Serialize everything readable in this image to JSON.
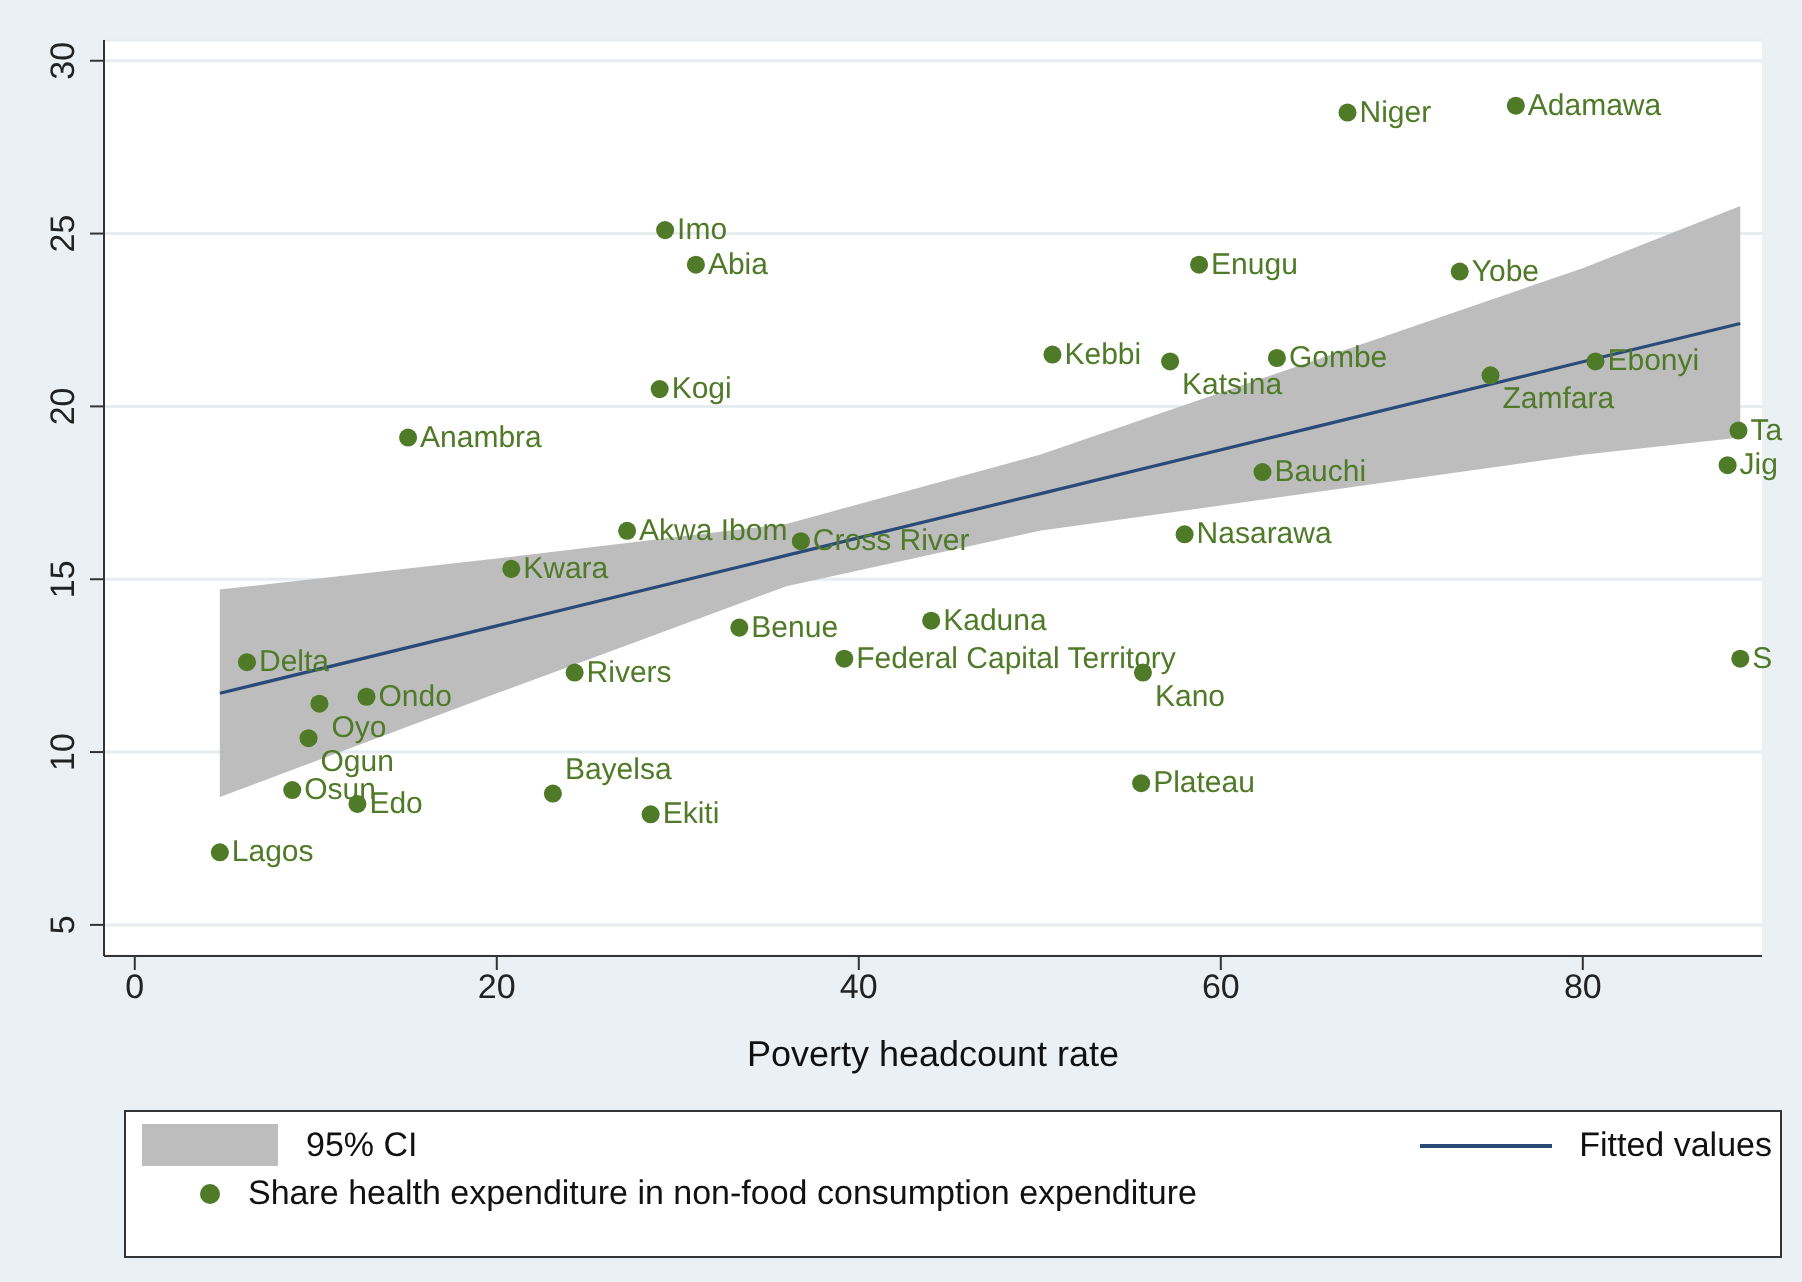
{
  "chart_data": {
    "type": "scatter",
    "xlabel": "Poverty headcount rate",
    "xlim": [
      -1.7,
      89.9
    ],
    "xticks": [
      0,
      20,
      40,
      60,
      80
    ],
    "ylim": [
      4.1,
      30.6
    ],
    "yticks": [
      5,
      10,
      15,
      20,
      25,
      30
    ],
    "grid": "y",
    "legend": "bottom",
    "series": [
      {
        "name": "Fitted values",
        "type": "line",
        "color": "#2a4a78",
        "x": [
          4.7,
          20,
          36,
          50,
          65,
          80,
          88.7
        ],
        "values": [
          11.7,
          13.65,
          15.69,
          17.47,
          19.38,
          21.29,
          22.4
        ],
        "lower": [
          8.7,
          11.7,
          14.8,
          16.4,
          17.5,
          18.6,
          19.1
        ],
        "upper": [
          14.7,
          15.6,
          16.6,
          18.6,
          21.3,
          24.0,
          25.8
        ]
      },
      {
        "name": "Share health expenditure in non-food consumption expenditure",
        "marker": "circle",
        "color": "#4f7a28",
        "x": [
          67.0,
          76.3,
          29.3,
          31.0,
          58.8,
          73.2,
          29.0,
          50.7,
          57.2,
          63.1,
          74.9,
          80.7,
          15.1,
          88.6,
          88.0,
          62.3,
          27.2,
          36.8,
          20.8,
          58.0,
          44.0,
          33.4,
          39.2,
          24.3,
          55.7,
          88.7,
          6.2,
          12.8,
          10.2,
          9.6,
          8.7,
          12.3,
          23.1,
          28.5,
          55.6,
          4.7
        ],
        "values": [
          28.5,
          28.7,
          25.1,
          24.1,
          24.1,
          23.9,
          20.5,
          21.5,
          21.3,
          21.4,
          20.9,
          21.3,
          19.1,
          19.3,
          18.3,
          18.1,
          16.4,
          16.1,
          15.3,
          16.3,
          13.8,
          13.6,
          12.7,
          12.3,
          12.3,
          12.7,
          12.6,
          11.6,
          11.4,
          10.4,
          8.9,
          8.5,
          8.8,
          8.2,
          9.1,
          7.1
        ]
      }
    ],
    "annotations": [
      "95% CI",
      {
        "text": "Niger",
        "x": 67.0,
        "y": 28.5
      },
      {
        "text": "Adamawa",
        "x": 76.3,
        "y": 28.7
      },
      {
        "text": "Imo",
        "x": 29.3,
        "y": 25.1
      },
      {
        "text": "Abia",
        "x": 31.0,
        "y": 24.1
      },
      {
        "text": "Enugu",
        "x": 58.8,
        "y": 24.1
      },
      {
        "text": "Yobe",
        "x": 73.2,
        "y": 23.9
      },
      {
        "text": "Kogi",
        "x": 29.0,
        "y": 20.5
      },
      {
        "text": "Kebbi",
        "x": 50.7,
        "y": 21.5
      },
      {
        "text": "Katsina",
        "x": 57.2,
        "y": 21.3
      },
      {
        "text": "Gombe",
        "x": 63.1,
        "y": 21.4
      },
      {
        "text": "Zamfara",
        "x": 74.9,
        "y": 20.9
      },
      {
        "text": "Ebonyi",
        "x": 80.7,
        "y": 21.3
      },
      {
        "text": "Anambra",
        "x": 15.1,
        "y": 19.1
      },
      {
        "text": "Ta",
        "x": 88.6,
        "y": 19.3
      },
      {
        "text": "Jig",
        "x": 88.0,
        "y": 18.3
      },
      {
        "text": "Bauchi",
        "x": 62.3,
        "y": 18.1
      },
      {
        "text": "Akwa Ibom",
        "x": 27.2,
        "y": 16.4
      },
      {
        "text": "Cross River",
        "x": 36.8,
        "y": 16.1
      },
      {
        "text": "Kwara",
        "x": 20.8,
        "y": 15.3
      },
      {
        "text": "Nasarawa",
        "x": 58.0,
        "y": 16.3
      },
      {
        "text": "Kaduna",
        "x": 44.0,
        "y": 13.8
      },
      {
        "text": "Benue",
        "x": 33.4,
        "y": 13.6
      },
      {
        "text": "Federal Capital Territory",
        "x": 39.2,
        "y": 12.7
      },
      {
        "text": "Rivers",
        "x": 24.3,
        "y": 12.3
      },
      {
        "text": "Kano",
        "x": 55.7,
        "y": 12.3
      },
      {
        "text": "S",
        "x": 88.7,
        "y": 12.7
      },
      {
        "text": "Delta",
        "x": 6.2,
        "y": 12.6
      },
      {
        "text": "Ondo",
        "x": 12.8,
        "y": 11.6
      },
      {
        "text": "Oyo",
        "x": 10.2,
        "y": 11.4
      },
      {
        "text": "Ogun",
        "x": 9.6,
        "y": 10.4
      },
      {
        "text": "Osun",
        "x": 8.7,
        "y": 8.9
      },
      {
        "text": "Edo",
        "x": 12.3,
        "y": 8.5
      },
      {
        "text": "Bayelsa",
        "x": 23.1,
        "y": 8.8
      },
      {
        "text": "Ekiti",
        "x": 28.5,
        "y": 8.2
      },
      {
        "text": "Plateau",
        "x": 55.6,
        "y": 9.1
      },
      {
        "text": "Lagos",
        "x": 4.7,
        "y": 7.1
      }
    ]
  }
}
